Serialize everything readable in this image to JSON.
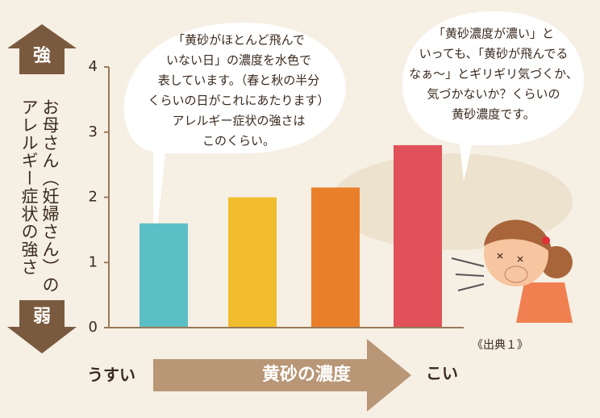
{
  "chart_data": {
    "type": "bar",
    "y_label": [
      "お母さん（妊婦さん）の",
      "アレルギー症状の強さ"
    ],
    "y_high": "強",
    "y_low": "弱",
    "x_label": "黄砂の濃度",
    "x_low": "うすい",
    "x_high": "こい",
    "source": "《出典１》",
    "annotations": [
      [
        "「黄砂がほとんど飛んで",
        "いない日」の濃度を水色で",
        "表しています。（春と秋の半分",
        "くらいの日がこれにあたります）",
        "アレルギー症状の強さは",
        "このくらい。"
      ],
      [
        "「黄砂濃度が濃い」と",
        "いっても、「黄砂が飛んでる",
        "なぁ〜」とギリギリ気づくか、",
        "気づかないか？くらいの",
        "黄砂濃度です。"
      ]
    ],
    "categories": [
      null,
      null,
      null,
      null
    ],
    "values": [
      1.6,
      2.0,
      2.15,
      2.8
    ],
    "colors": [
      "#5bbfc6",
      "#f2bd2c",
      "#ea7f2a",
      "#e0515a"
    ],
    "ylim": [
      0,
      4
    ],
    "yticks": [
      0,
      1,
      2,
      3,
      4
    ]
  }
}
